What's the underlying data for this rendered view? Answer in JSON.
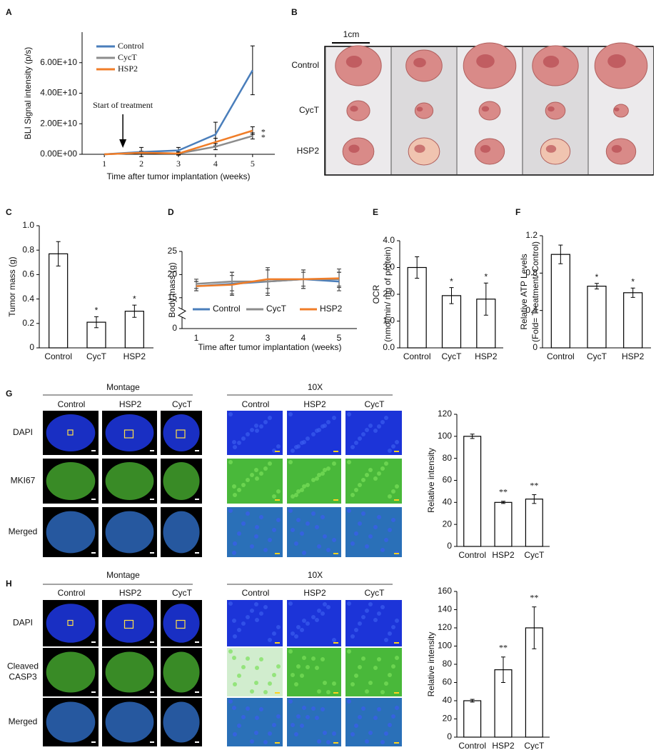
{
  "chart_data": [
    {
      "type": "line",
      "panel": "A",
      "ylabel": "BLI Signal intensity (p/s)",
      "xlabel": "Time after tumor implantation (weeks)",
      "x": [
        1,
        2,
        3,
        4,
        5
      ],
      "xlim": [
        0.4,
        5.6
      ],
      "xticks": [
        1,
        2,
        3,
        4,
        5
      ],
      "ylim": [
        0,
        80000000000
      ],
      "yticks": [
        {
          "value": 0,
          "label": "0.00E+00"
        },
        {
          "value": 20000000000,
          "label": "2.00E+10"
        },
        {
          "value": 40000000000,
          "label": "4.00E+10"
        },
        {
          "value": 60000000000,
          "label": "6.00E+10"
        }
      ],
      "series": [
        {
          "name": "Control",
          "color": "#4a7ebb",
          "values": [
            0,
            1500000000,
            2500000000,
            13000000000,
            55000000000
          ],
          "errors": [
            0,
            3000000000,
            2000000000,
            8000000000,
            16000000000
          ]
        },
        {
          "name": "CycT",
          "color": "#8c8c8c",
          "values": [
            0,
            1000000000,
            500000000,
            5000000000,
            12000000000
          ],
          "errors": [
            0,
            1000000000,
            1000000000,
            2000000000,
            2000000000
          ],
          "end_label": "*"
        },
        {
          "name": "HSP2",
          "color": "#f07d28",
          "values": [
            0,
            1000000000,
            500000000,
            8000000000,
            15500000000
          ],
          "errors": [
            0,
            1000000000,
            1000000000,
            2500000000,
            2500000000
          ],
          "end_label": "*"
        }
      ],
      "legend": "upper left",
      "annotation": {
        "text": "Start of treatment",
        "x": 1.5
      }
    },
    {
      "type": "bar",
      "panel": "C",
      "ylabel": "Tumor mass (g)",
      "categories": [
        "Control",
        "CycT",
        "HSP2"
      ],
      "values": [
        0.77,
        0.21,
        0.3
      ],
      "errors": [
        0.1,
        0.045,
        0.05
      ],
      "bar_labels": [
        null,
        "*",
        "*"
      ],
      "color": "#ffffff",
      "ylim": [
        0,
        1
      ],
      "yticks": [
        0,
        0.2,
        0.4,
        0.6,
        0.8,
        {
          "value": 1,
          "label": "1.0"
        }
      ]
    },
    {
      "type": "line",
      "panel": "D",
      "ylabel": "Body mass (g)",
      "xlabel": "Time after tumor implantation (weeks)",
      "x": [
        1,
        2,
        3,
        4,
        5
      ],
      "xlim": [
        0.6,
        5.5
      ],
      "xticks": [
        1,
        2,
        3,
        4,
        5
      ],
      "ylim": [
        0,
        25
      ],
      "yticks": [
        0,
        15,
        20,
        25
      ],
      "axis_break": true,
      "series": [
        {
          "name": "Control",
          "color": "#4a7ebb",
          "values": [
            17.5,
            18,
            18.5,
            19,
            18.5
          ],
          "errors": [
            1,
            2.5,
            2.5,
            2,
            2
          ]
        },
        {
          "name": "CycT",
          "color": "#8c8c8c",
          "values": [
            18,
            18.5,
            18.5,
            19,
            19
          ],
          "errors": [
            1,
            2,
            3,
            2,
            1.5
          ]
        },
        {
          "name": "HSP2",
          "color": "#f07d28",
          "values": [
            17.5,
            17.8,
            19,
            19,
            19.2
          ],
          "errors": [
            1,
            2,
            2,
            1.5,
            2
          ]
        }
      ],
      "legend": "lower center"
    },
    {
      "type": "bar",
      "panel": "E",
      "ylabel": [
        "OCR",
        "(nmol/min/ mg of protein)"
      ],
      "categories": [
        "Control",
        "CycT",
        "HSP2"
      ],
      "values": [
        3.0,
        1.95,
        1.82
      ],
      "errors": [
        0.4,
        0.3,
        0.6
      ],
      "bar_labels": [
        null,
        "*",
        "*"
      ],
      "color": "#ffffff",
      "ylim": [
        0,
        4
      ],
      "yticks": [
        {
          "value": 0,
          "label": "0.0"
        },
        {
          "value": 1,
          "label": "1.0"
        },
        {
          "value": 2,
          "label": "2.0"
        },
        {
          "value": 3,
          "label": "3.0"
        },
        {
          "value": 4,
          "label": "4.0"
        }
      ]
    },
    {
      "type": "bar",
      "panel": "F",
      "ylabel": [
        "Relative ATP Levels",
        "(Fold= Treatment/ Control)"
      ],
      "categories": [
        "Control",
        "CycT",
        "HSP2"
      ],
      "values": [
        1.0,
        0.66,
        0.59
      ],
      "errors": [
        0.1,
        0.03,
        0.05
      ],
      "bar_labels": [
        null,
        "*",
        "*"
      ],
      "color": "#ffffff",
      "ylim": [
        0,
        1.2
      ],
      "yticks": [
        0,
        0.4,
        0.8,
        1.2
      ]
    },
    {
      "type": "bar",
      "ylabel": "Relative intensity",
      "categories": [
        "Control",
        "HSP2",
        "CycT"
      ],
      "values": [
        100,
        40,
        43
      ],
      "errors": [
        2,
        1,
        4
      ],
      "bar_labels": [
        null,
        "**",
        "**"
      ],
      "color": "#ffffff",
      "ylim": [
        0,
        120
      ],
      "yticks": [
        0,
        20,
        40,
        60,
        80,
        100,
        120
      ]
    },
    {
      "type": "bar",
      "ylabel": "Relative intensity",
      "categories": [
        "Control",
        "HSP2",
        "CycT"
      ],
      "values": [
        40,
        74,
        120
      ],
      "errors": [
        1.5,
        14,
        23
      ],
      "bar_labels": [
        null,
        "**",
        "**"
      ],
      "color": "#ffffff",
      "ylim": [
        0,
        160
      ],
      "yticks": [
        0,
        20,
        40,
        60,
        80,
        100,
        120,
        140,
        160
      ]
    }
  ],
  "photo": {
    "panel": "B",
    "scale_label": "1cm",
    "rows": [
      "Control",
      "CycT",
      "HSP2"
    ]
  },
  "microscopy": [
    {
      "panel": "G",
      "groups": [
        {
          "title": "Montage",
          "columns": [
            "Control",
            "HSP2",
            "CycT"
          ]
        },
        {
          "title": "10X",
          "columns": [
            "Control",
            "HSP2",
            "CycT"
          ]
        }
      ],
      "rows": [
        [
          "DAPI"
        ],
        [
          "MKI67"
        ],
        [
          "Merged"
        ]
      ]
    },
    {
      "panel": "H",
      "groups": [
        {
          "title": "Montage",
          "columns": [
            "Control",
            "HSP2",
            "CycT"
          ]
        },
        {
          "title": "10X",
          "columns": [
            "Control",
            "HSP2",
            "CycT"
          ]
        }
      ],
      "rows": [
        [
          "DAPI"
        ],
        [
          "Cleaved",
          "CASP3"
        ],
        [
          "Merged"
        ]
      ]
    }
  ]
}
